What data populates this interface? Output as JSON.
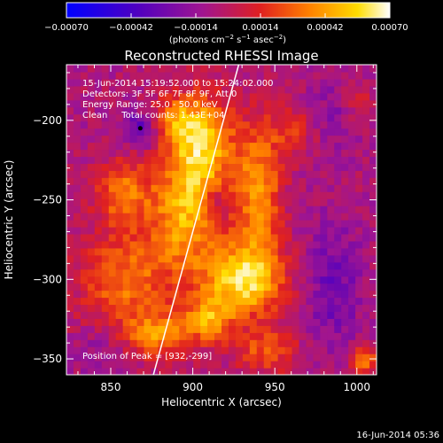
{
  "chart_data": {
    "type": "heatmap",
    "title": "Reconstructed RHESSI Image",
    "xlabel": "Heliocentric X (arcsec)",
    "ylabel": "Heliocentric Y (arcsec)",
    "xlim": [
      823,
      1012
    ],
    "ylim": [
      -360,
      -165
    ],
    "x_ticks": [
      850,
      900,
      950,
      1000
    ],
    "x_tick_labels": [
      "850",
      "900",
      "950",
      "1000"
    ],
    "y_ticks": [
      -200,
      -250,
      -300,
      -350
    ],
    "y_tick_labels": [
      "−200",
      "−250",
      "−300",
      "−350"
    ],
    "colorbar": {
      "range": [
        -0.0007,
        0.0007
      ],
      "ticks": [
        -0.0007,
        -0.00042,
        -0.00014,
        0.00014,
        0.00042,
        0.0007
      ],
      "tick_labels": [
        "−0.00070",
        "−0.00042",
        "−0.00014",
        "0.00014",
        "0.00042",
        "0.00070"
      ],
      "units_text": "(photons cm",
      "units_exp1": "−2",
      "units_mid": " s",
      "units_exp2": "−1",
      "units_mid2": " asec",
      "units_exp3": "−2",
      "units_end": ")"
    },
    "annotations": [
      "15-Jun-2014 15:19:52.000 to 15:24:02.000",
      "Detectors: 3F 5F 6F 7F 8F 9F, Att 0",
      "Energy Range: 25.0 - 50.0 keV",
      "Clean     Total counts: 1.43E+04"
    ],
    "peak_label": "Position of Peak = [932,-299]",
    "peak": [
      932,
      -299
    ],
    "limb_line": [
      [
        876,
        -360
      ],
      [
        928,
        -165
      ]
    ],
    "sources": [
      {
        "x": 905,
        "y": -215,
        "sx": 14,
        "sy": 22,
        "amp": 0.0006
      },
      {
        "x": 888,
        "y": -200,
        "sx": 10,
        "sy": 10,
        "amp": 0.0003
      },
      {
        "x": 930,
        "y": -300,
        "sx": 18,
        "sy": 16,
        "amp": 0.00065
      },
      {
        "x": 895,
        "y": -260,
        "sx": 14,
        "sy": 22,
        "amp": 0.00048
      },
      {
        "x": 940,
        "y": -245,
        "sx": 10,
        "sy": 30,
        "amp": 0.00045
      },
      {
        "x": 858,
        "y": -245,
        "sx": 12,
        "sy": 14,
        "amp": 0.0004
      },
      {
        "x": 860,
        "y": -300,
        "sx": 20,
        "sy": 22,
        "amp": 0.00038
      },
      {
        "x": 880,
        "y": -335,
        "sx": 14,
        "sy": 10,
        "amp": 0.0004
      },
      {
        "x": 945,
        "y": -345,
        "sx": 14,
        "sy": 10,
        "amp": 0.0003
      },
      {
        "x": 1005,
        "y": -350,
        "sx": 6,
        "sy": 6,
        "amp": 0.00045
      },
      {
        "x": 1002,
        "y": -190,
        "sx": 8,
        "sy": 10,
        "amp": 0.0002
      },
      {
        "x": 910,
        "y": -325,
        "sx": 10,
        "sy": 10,
        "amp": 0.0004
      },
      {
        "x": 960,
        "y": -205,
        "sx": 10,
        "sy": 12,
        "amp": 0.00022
      }
    ],
    "negative_regions": [
      {
        "x": 868,
        "y": -205,
        "sx": 8,
        "sy": 8,
        "amp": -0.0003
      },
      {
        "x": 985,
        "y": -305,
        "sx": 12,
        "sy": 28,
        "amp": -0.00022
      },
      {
        "x": 990,
        "y": -195,
        "sx": 14,
        "sy": 14,
        "amp": -0.00014
      },
      {
        "x": 915,
        "y": -250,
        "sx": 6,
        "sy": 6,
        "amp": -0.00018
      },
      {
        "x": 845,
        "y": -345,
        "sx": 10,
        "sy": 10,
        "amp": -0.00012
      }
    ],
    "dark_spot": [
      868,
      -205
    ]
  },
  "footer": {
    "date": "16-Jun-2014 05:36"
  }
}
